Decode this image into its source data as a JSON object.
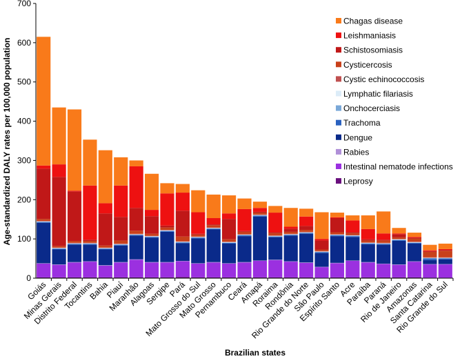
{
  "chart_data": {
    "type": "bar",
    "stacked": true,
    "xlabel": "Brazilian states",
    "ylabel": "Age-standardized DALY rates per 100,000 population",
    "ylim": [
      0,
      700
    ],
    "yticks": [
      0,
      100,
      200,
      300,
      400,
      500,
      600,
      700
    ],
    "grid": false,
    "legend_position": "top-right",
    "categories": [
      "Goiás",
      "Minas Gerais",
      "Distrito Federal",
      "Tocantins",
      "Bahia",
      "Piauí",
      "Maranhão",
      "Alagoas",
      "Sergipe",
      "Pará",
      "Mato Grosso do Sul",
      "Mato Grosso",
      "Pernambuco",
      "Ceará",
      "Amapá",
      "Roraima",
      "Rondônia",
      "Rio Grande do Norte",
      "São Paulo",
      "Espírito Santo",
      "Acre",
      "Paraíba",
      "Paraná",
      "Rio de Janeiro",
      "Amazonas",
      "Santa Catarina",
      "Rio Grande do Sul"
    ],
    "series": [
      {
        "name": "Leprosy",
        "color": "#6a0f7d",
        "values": [
          2,
          2,
          2,
          2,
          2,
          2,
          2,
          2,
          2,
          3,
          2,
          2,
          2,
          2,
          2,
          2,
          2,
          2,
          1,
          2,
          2,
          2,
          2,
          2,
          2,
          1,
          1
        ]
      },
      {
        "name": "Intestinal nematode infections",
        "color": "#9b30e0",
        "values": [
          35,
          32,
          38,
          40,
          30,
          38,
          45,
          38,
          38,
          40,
          35,
          38,
          35,
          38,
          42,
          44,
          40,
          37,
          27,
          36,
          42,
          38,
          34,
          32,
          40,
          34,
          34
        ]
      },
      {
        "name": "Rabies",
        "color": "#b090d8",
        "values": [
          1,
          1,
          1,
          1,
          1,
          1,
          1,
          1,
          1,
          1,
          1,
          1,
          1,
          1,
          1,
          1,
          1,
          1,
          1,
          1,
          1,
          1,
          1,
          1,
          1,
          1,
          1
        ]
      },
      {
        "name": "Dengue",
        "color": "#0a2a8a",
        "values": [
          103,
          38,
          44,
          42,
          40,
          42,
          60,
          62,
          77,
          45,
          63,
          83,
          50,
          66,
          112,
          57,
          65,
          73,
          35,
          68,
          60,
          45,
          48,
          60,
          45,
          10,
          12
        ]
      },
      {
        "name": "Trachoma",
        "color": "#2a62c0",
        "values": [
          2,
          2,
          2,
          2,
          2,
          2,
          2,
          2,
          2,
          2,
          2,
          2,
          2,
          2,
          2,
          2,
          2,
          2,
          2,
          2,
          2,
          2,
          2,
          2,
          2,
          4,
          2
        ]
      },
      {
        "name": "Onchocerciasis",
        "color": "#7aa8d8",
        "values": [
          1,
          1,
          1,
          1,
          1,
          1,
          1,
          1,
          1,
          1,
          1,
          1,
          1,
          1,
          1,
          1,
          1,
          1,
          1,
          1,
          1,
          1,
          1,
          1,
          1,
          1,
          1
        ]
      },
      {
        "name": "Lymphatic filariasis",
        "color": "#dcecf8",
        "values": [
          1,
          1,
          1,
          1,
          1,
          1,
          1,
          1,
          1,
          1,
          1,
          1,
          1,
          1,
          1,
          1,
          1,
          1,
          1,
          1,
          1,
          1,
          1,
          1,
          1,
          1,
          1
        ]
      },
      {
        "name": "Cystic echinococcosis",
        "color": "#c05050",
        "values": [
          1,
          1,
          1,
          1,
          1,
          1,
          1,
          1,
          1,
          1,
          1,
          1,
          1,
          1,
          1,
          1,
          1,
          1,
          1,
          1,
          1,
          1,
          1,
          1,
          1,
          1,
          1
        ]
      },
      {
        "name": "Cysticercosis",
        "color": "#c8401a",
        "values": [
          5,
          4,
          5,
          5,
          5,
          8,
          8,
          5,
          6,
          12,
          5,
          6,
          6,
          6,
          5,
          6,
          5,
          5,
          4,
          5,
          5,
          5,
          6,
          4,
          8,
          14,
          17
        ]
      },
      {
        "name": "Schistosomiasis",
        "color": "#c01818",
        "values": [
          128,
          176,
          126,
          3,
          82,
          60,
          58,
          45,
          5,
          66,
          2,
          2,
          52,
          2,
          2,
          2,
          8,
          10,
          23,
          36,
          2,
          3,
          2,
          8,
          2,
          2,
          2
        ]
      },
      {
        "name": "Leishmaniasis",
        "color": "#ee1111",
        "values": [
          8,
          32,
          2,
          138,
          26,
          80,
          106,
          16,
          82,
          46,
          55,
          16,
          14,
          56,
          10,
          50,
          5,
          24,
          4,
          2,
          30,
          26,
          16,
          2,
          2,
          2,
          2
        ]
      },
      {
        "name": "Chagas disease",
        "color": "#f97a1a",
        "values": [
          328,
          145,
          207,
          117,
          135,
          72,
          15,
          92,
          26,
          22,
          56,
          60,
          46,
          27,
          16,
          17,
          48,
          20,
          68,
          12,
          13,
          35,
          56,
          14,
          11,
          14,
          14
        ]
      }
    ]
  }
}
